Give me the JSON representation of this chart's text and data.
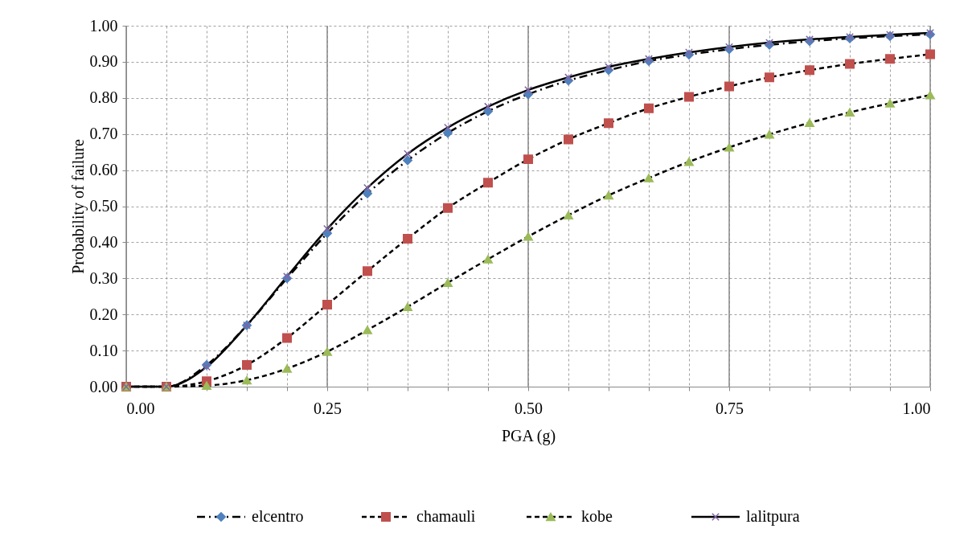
{
  "chart_data": {
    "type": "line",
    "xlabel": "PGA (g)",
    "ylabel": "Probability of failure",
    "x": [
      0,
      0.05,
      0.1,
      0.15,
      0.2,
      0.25,
      0.3,
      0.35,
      0.4,
      0.45,
      0.5,
      0.55,
      0.6,
      0.65,
      0.7,
      0.75,
      0.8,
      0.85,
      0.9,
      0.95,
      1.0
    ],
    "series": [
      {
        "name": "elcentro",
        "color": "#4f81bd",
        "marker": "diamond",
        "line_style": "dotted",
        "values": [
          0,
          0,
          0.06,
          0.17,
          0.3,
          0.425,
          0.535,
          0.627,
          0.703,
          0.763,
          0.81,
          0.848,
          0.877,
          0.902,
          0.92,
          0.935,
          0.947,
          0.957,
          0.965,
          0.971,
          0.976
        ]
      },
      {
        "name": "chamauli",
        "color": "#c0504d",
        "marker": "square",
        "line_style": "dashed",
        "values": [
          0,
          0,
          0.015,
          0.06,
          0.135,
          0.227,
          0.32,
          0.41,
          0.495,
          0.565,
          0.63,
          0.685,
          0.73,
          0.771,
          0.803,
          0.832,
          0.857,
          0.877,
          0.894,
          0.908,
          0.921
        ]
      },
      {
        "name": "kobe",
        "color": "#9bbb59",
        "marker": "triangle",
        "line_style": "dashed",
        "values": [
          0,
          0,
          0.003,
          0.018,
          0.05,
          0.097,
          0.157,
          0.221,
          0.288,
          0.353,
          0.416,
          0.475,
          0.53,
          0.578,
          0.623,
          0.663,
          0.699,
          0.731,
          0.76,
          0.785,
          0.808
        ]
      },
      {
        "name": "lalitpura",
        "color": "#8064a2",
        "marker": "cross",
        "line_style": "solid",
        "values": [
          0,
          0,
          0.055,
          0.17,
          0.305,
          0.437,
          0.551,
          0.645,
          0.718,
          0.776,
          0.822,
          0.857,
          0.886,
          0.908,
          0.926,
          0.941,
          0.953,
          0.962,
          0.969,
          0.975,
          0.98
        ]
      }
    ],
    "xlim": [
      0,
      1.0
    ],
    "xticks": [
      {
        "value": 0,
        "label": "0.00"
      },
      {
        "value": 0.05,
        "label": null
      },
      {
        "value": 0.1,
        "label": null
      },
      {
        "value": 0.15,
        "label": null
      },
      {
        "value": 0.2,
        "label": null
      },
      {
        "value": 0.25,
        "label": "0.25"
      },
      {
        "value": 0.3,
        "label": null
      },
      {
        "value": 0.35,
        "label": null
      },
      {
        "value": 0.4,
        "label": null
      },
      {
        "value": 0.45,
        "label": null
      },
      {
        "value": 0.5,
        "label": "0.50"
      },
      {
        "value": 0.55,
        "label": null
      },
      {
        "value": 0.6,
        "label": null
      },
      {
        "value": 0.65,
        "label": null
      },
      {
        "value": 0.7,
        "label": null
      },
      {
        "value": 0.75,
        "label": "0.75"
      },
      {
        "value": 0.8,
        "label": null
      },
      {
        "value": 0.85,
        "label": null
      },
      {
        "value": 0.9,
        "label": null
      },
      {
        "value": 0.95,
        "label": null
      },
      {
        "value": 1.0,
        "label": "1.00"
      }
    ],
    "ylim": [
      0,
      1.0
    ],
    "yticks": [
      {
        "value": 0,
        "label": "0.00"
      },
      {
        "value": 0.1,
        "label": "0.10"
      },
      {
        "value": 0.2,
        "label": "0.20"
      },
      {
        "value": 0.3,
        "label": "0.30"
      },
      {
        "value": 0.4,
        "label": "0.40"
      },
      {
        "value": 0.5,
        "label": "0.50"
      },
      {
        "value": 0.6,
        "label": "0.60"
      },
      {
        "value": 0.7,
        "label": "0.70"
      },
      {
        "value": 0.8,
        "label": "0.80"
      },
      {
        "value": 0.9,
        "label": "0.90"
      },
      {
        "value": 1.0,
        "label": "1.00"
      }
    ],
    "grid": true,
    "legend": "bottom"
  }
}
